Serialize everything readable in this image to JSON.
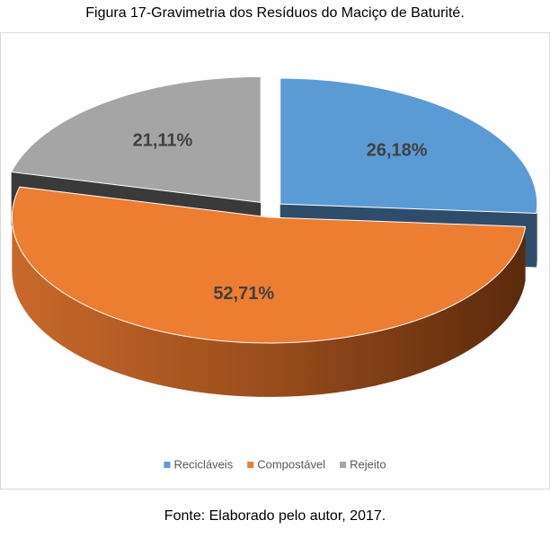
{
  "chart_data": {
    "type": "pie3d",
    "title": "Figura 17-Gravimetria dos Resíduos do Maciço de Baturité.",
    "caption": "Fonte: Elaborado pelo autor, 2017.",
    "categories": [
      "Recicláveis",
      "Compostável",
      "Rejeito"
    ],
    "values": [
      26.18,
      52.71,
      21.11
    ],
    "value_labels": [
      "26,18%",
      "52,71%",
      "21,11%"
    ],
    "colors": [
      "#5b9bd5",
      "#ed7d31",
      "#a5a5a5"
    ],
    "legend": "bottom"
  }
}
